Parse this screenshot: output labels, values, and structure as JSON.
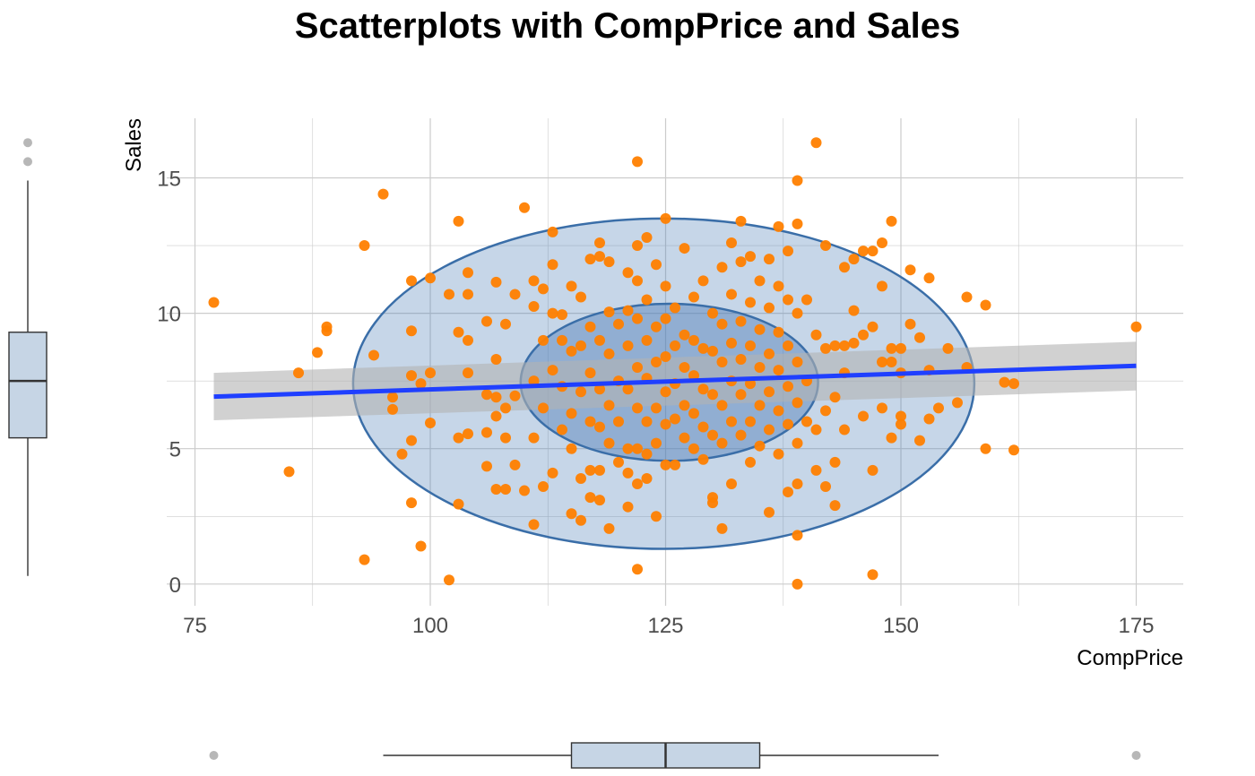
{
  "chart_data": {
    "type": "scatter",
    "title": "Scatterplots with CompPrice and Sales",
    "xlabel": "CompPrice",
    "ylabel": "Sales",
    "xlim": [
      72,
      180
    ],
    "ylim": [
      -0.8,
      17.2
    ],
    "x_ticks": [
      75,
      100,
      125,
      150,
      175
    ],
    "y_ticks": [
      0,
      5,
      10,
      15
    ],
    "x_ticks_minor": [
      87.5,
      112.5,
      137.5,
      162.5
    ],
    "y_ticks_minor": [
      2.5,
      7.5,
      12.5
    ],
    "grid": true,
    "colors": {
      "points": "#ff7f00",
      "fit_line": "#1f3fff",
      "confidence_band": "#b3b3b3",
      "ellipse_fill": "#4f7fb8",
      "ellipse_stroke": "#3a6ea8",
      "box_fill": "#c6d5e5",
      "outlier": "#999999",
      "grid": "#cccccc"
    },
    "series": [
      {
        "points": [
          [
            77,
            10.4
          ],
          [
            85,
            4.15
          ],
          [
            86,
            7.8
          ],
          [
            88,
            8.55
          ],
          [
            89,
            9.35
          ],
          [
            89,
            9.5
          ],
          [
            93,
            12.5
          ],
          [
            93,
            0.9
          ],
          [
            94,
            8.45
          ],
          [
            95,
            14.4
          ],
          [
            96,
            6.9
          ],
          [
            96,
            6.45
          ],
          [
            97,
            4.8
          ],
          [
            98,
            11.2
          ],
          [
            98,
            9.35
          ],
          [
            98,
            7.7
          ],
          [
            98,
            5.3
          ],
          [
            98,
            3.0
          ],
          [
            99,
            7.4
          ],
          [
            99,
            1.4
          ],
          [
            100,
            11.3
          ],
          [
            100,
            7.8
          ],
          [
            100,
            5.95
          ],
          [
            102,
            0.15
          ],
          [
            102,
            10.7
          ],
          [
            103,
            13.4
          ],
          [
            103,
            9.3
          ],
          [
            103,
            5.4
          ],
          [
            103,
            2.95
          ],
          [
            104,
            11.5
          ],
          [
            104,
            10.7
          ],
          [
            104,
            9.0
          ],
          [
            104,
            7.8
          ],
          [
            104,
            5.55
          ],
          [
            106,
            7.0
          ],
          [
            106,
            5.6
          ],
          [
            106,
            4.35
          ],
          [
            106,
            9.7
          ],
          [
            107,
            11.15
          ],
          [
            107,
            8.3
          ],
          [
            107,
            6.9
          ],
          [
            107,
            6.2
          ],
          [
            107,
            3.5
          ],
          [
            108,
            9.6
          ],
          [
            108,
            6.5
          ],
          [
            108,
            5.4
          ],
          [
            108,
            3.5
          ],
          [
            109,
            10.7
          ],
          [
            109,
            6.95
          ],
          [
            109,
            4.4
          ],
          [
            110,
            13.9
          ],
          [
            110,
            3.45
          ],
          [
            111,
            11.2
          ],
          [
            111,
            10.25
          ],
          [
            111,
            7.5
          ],
          [
            111,
            5.4
          ],
          [
            111,
            2.2
          ],
          [
            112,
            10.9
          ],
          [
            112,
            9.0
          ],
          [
            112,
            6.5
          ],
          [
            112,
            3.6
          ],
          [
            113,
            13.0
          ],
          [
            113,
            11.8
          ],
          [
            113,
            10.0
          ],
          [
            113,
            7.9
          ],
          [
            113,
            4.1
          ],
          [
            114,
            9.95
          ],
          [
            114,
            9.0
          ],
          [
            114,
            7.3
          ],
          [
            114,
            5.7
          ],
          [
            115,
            11.0
          ],
          [
            115,
            8.6
          ],
          [
            115,
            6.3
          ],
          [
            115,
            5.0
          ],
          [
            115,
            2.6
          ],
          [
            116,
            10.6
          ],
          [
            116,
            8.8
          ],
          [
            116,
            7.1
          ],
          [
            116,
            3.9
          ],
          [
            116,
            2.35
          ],
          [
            117,
            12.0
          ],
          [
            117,
            9.5
          ],
          [
            117,
            7.8
          ],
          [
            117,
            6.0
          ],
          [
            117,
            4.2
          ],
          [
            117,
            3.2
          ],
          [
            118,
            12.6
          ],
          [
            118,
            12.1
          ],
          [
            118,
            9.0
          ],
          [
            118,
            7.2
          ],
          [
            118,
            5.8
          ],
          [
            118,
            4.2
          ],
          [
            118,
            3.1
          ],
          [
            119,
            11.9
          ],
          [
            119,
            10.05
          ],
          [
            119,
            8.5
          ],
          [
            119,
            6.6
          ],
          [
            119,
            5.2
          ],
          [
            119,
            2.05
          ],
          [
            120,
            9.6
          ],
          [
            120,
            7.5
          ],
          [
            120,
            6.0
          ],
          [
            120,
            4.5
          ],
          [
            121,
            11.5
          ],
          [
            121,
            10.1
          ],
          [
            121,
            8.8
          ],
          [
            121,
            7.2
          ],
          [
            121,
            5.0
          ],
          [
            121,
            4.1
          ],
          [
            121,
            2.85
          ],
          [
            122,
            15.6
          ],
          [
            122,
            12.5
          ],
          [
            122,
            11.2
          ],
          [
            122,
            9.8
          ],
          [
            122,
            8.0
          ],
          [
            122,
            6.5
          ],
          [
            122,
            5.0
          ],
          [
            122,
            3.7
          ],
          [
            122,
            0.55
          ],
          [
            123,
            12.8
          ],
          [
            123,
            10.5
          ],
          [
            123,
            9.0
          ],
          [
            123,
            7.6
          ],
          [
            123,
            6.0
          ],
          [
            123,
            4.8
          ],
          [
            123,
            3.9
          ],
          [
            124,
            11.8
          ],
          [
            124,
            9.5
          ],
          [
            124,
            8.2
          ],
          [
            124,
            6.5
          ],
          [
            124,
            5.2
          ],
          [
            124,
            2.5
          ],
          [
            125,
            13.5
          ],
          [
            125,
            11.0
          ],
          [
            125,
            9.8
          ],
          [
            125,
            8.4
          ],
          [
            125,
            7.1
          ],
          [
            125,
            5.9
          ],
          [
            125,
            4.4
          ],
          [
            126,
            10.2
          ],
          [
            126,
            8.8
          ],
          [
            126,
            7.4
          ],
          [
            126,
            6.1
          ],
          [
            126,
            4.4
          ],
          [
            127,
            12.4
          ],
          [
            127,
            9.2
          ],
          [
            127,
            8.0
          ],
          [
            127,
            6.6
          ],
          [
            127,
            5.4
          ],
          [
            128,
            10.6
          ],
          [
            128,
            9.0
          ],
          [
            128,
            7.7
          ],
          [
            128,
            6.3
          ],
          [
            128,
            5.0
          ],
          [
            129,
            11.2
          ],
          [
            129,
            8.7
          ],
          [
            129,
            7.2
          ],
          [
            129,
            5.8
          ],
          [
            129,
            4.6
          ],
          [
            130,
            10.0
          ],
          [
            130,
            8.6
          ],
          [
            130,
            7.0
          ],
          [
            130,
            5.5
          ],
          [
            130,
            3.2
          ],
          [
            130,
            3.0
          ],
          [
            131,
            11.7
          ],
          [
            131,
            9.6
          ],
          [
            131,
            8.2
          ],
          [
            131,
            6.6
          ],
          [
            131,
            5.2
          ],
          [
            131,
            2.05
          ],
          [
            132,
            12.6
          ],
          [
            132,
            10.7
          ],
          [
            132,
            8.9
          ],
          [
            132,
            7.5
          ],
          [
            132,
            6.0
          ],
          [
            132,
            3.7
          ],
          [
            133,
            13.4
          ],
          [
            133,
            11.9
          ],
          [
            133,
            9.7
          ],
          [
            133,
            8.3
          ],
          [
            133,
            7.0
          ],
          [
            133,
            5.5
          ],
          [
            134,
            12.1
          ],
          [
            134,
            10.4
          ],
          [
            134,
            8.8
          ],
          [
            134,
            7.4
          ],
          [
            134,
            6.0
          ],
          [
            134,
            4.5
          ],
          [
            135,
            11.2
          ],
          [
            135,
            9.4
          ],
          [
            135,
            8.0
          ],
          [
            135,
            6.6
          ],
          [
            135,
            5.1
          ],
          [
            136,
            12.0
          ],
          [
            136,
            10.2
          ],
          [
            136,
            8.5
          ],
          [
            136,
            7.1
          ],
          [
            136,
            5.7
          ],
          [
            136,
            2.65
          ],
          [
            137,
            13.2
          ],
          [
            137,
            11.0
          ],
          [
            137,
            9.3
          ],
          [
            137,
            7.9
          ],
          [
            137,
            6.4
          ],
          [
            137,
            4.8
          ],
          [
            138,
            12.3
          ],
          [
            138,
            10.5
          ],
          [
            138,
            8.8
          ],
          [
            138,
            7.3
          ],
          [
            138,
            5.9
          ],
          [
            138,
            3.4
          ],
          [
            139,
            14.9
          ],
          [
            139,
            13.3
          ],
          [
            139,
            10.0
          ],
          [
            139,
            8.2
          ],
          [
            139,
            6.7
          ],
          [
            139,
            5.2
          ],
          [
            139,
            3.7
          ],
          [
            139,
            1.8
          ],
          [
            139,
            0.0
          ],
          [
            140,
            10.5
          ],
          [
            140,
            7.5
          ],
          [
            140,
            6.0
          ],
          [
            141,
            16.3
          ],
          [
            141,
            9.2
          ],
          [
            141,
            5.7
          ],
          [
            141,
            4.2
          ],
          [
            142,
            12.5
          ],
          [
            142,
            8.7
          ],
          [
            142,
            6.4
          ],
          [
            142,
            3.6
          ],
          [
            143,
            8.8
          ],
          [
            143,
            6.9
          ],
          [
            143,
            4.5
          ],
          [
            143,
            2.9
          ],
          [
            144,
            11.7
          ],
          [
            144,
            8.8
          ],
          [
            144,
            7.8
          ],
          [
            144,
            5.7
          ],
          [
            145,
            12.0
          ],
          [
            145,
            10.1
          ],
          [
            145,
            8.9
          ],
          [
            146,
            12.3
          ],
          [
            146,
            9.2
          ],
          [
            146,
            6.2
          ],
          [
            147,
            12.3
          ],
          [
            147,
            9.5
          ],
          [
            147,
            4.2
          ],
          [
            147,
            0.35
          ],
          [
            148,
            12.6
          ],
          [
            148,
            11.0
          ],
          [
            148,
            8.2
          ],
          [
            148,
            6.5
          ],
          [
            149,
            13.4
          ],
          [
            149,
            8.7
          ],
          [
            149,
            8.2
          ],
          [
            149,
            5.4
          ],
          [
            150,
            8.7
          ],
          [
            150,
            7.8
          ],
          [
            150,
            6.2
          ],
          [
            150,
            5.9
          ],
          [
            151,
            11.6
          ],
          [
            151,
            9.6
          ],
          [
            152,
            9.1
          ],
          [
            152,
            5.3
          ],
          [
            153,
            11.3
          ],
          [
            153,
            7.9
          ],
          [
            153,
            6.1
          ],
          [
            154,
            6.5
          ],
          [
            155,
            8.7
          ],
          [
            156,
            6.7
          ],
          [
            157,
            10.6
          ],
          [
            157,
            8.0
          ],
          [
            159,
            10.3
          ],
          [
            159,
            5.0
          ],
          [
            161,
            7.45
          ],
          [
            162,
            7.4
          ],
          [
            162,
            4.95
          ],
          [
            175,
            9.5
          ]
        ]
      }
    ],
    "fit_line": {
      "x": [
        77,
        175
      ],
      "y": [
        6.92,
        8.06
      ],
      "band_lower": [
        6.05,
        7.15
      ],
      "band_upper": [
        7.8,
        8.95
      ]
    },
    "ellipses": [
      {
        "level": "outer",
        "center": [
          124.8,
          7.4
        ],
        "radius_x": 33.0,
        "radius_y": 6.1,
        "fill_opacity": 0.32
      },
      {
        "level": "inner",
        "center": [
          125.4,
          7.45
        ],
        "radius_x": 15.8,
        "radius_y": 2.9,
        "fill_opacity": 0.45
      }
    ],
    "marginal_boxplot_y": {
      "min": 0.3,
      "q1": 5.4,
      "median": 7.5,
      "q3": 9.3,
      "max": 14.9,
      "outliers": [
        15.6,
        16.3
      ]
    },
    "marginal_boxplot_x": {
      "min": 95,
      "q1": 115,
      "median": 125,
      "q3": 135,
      "max": 154,
      "outliers": [
        77,
        175
      ]
    }
  }
}
